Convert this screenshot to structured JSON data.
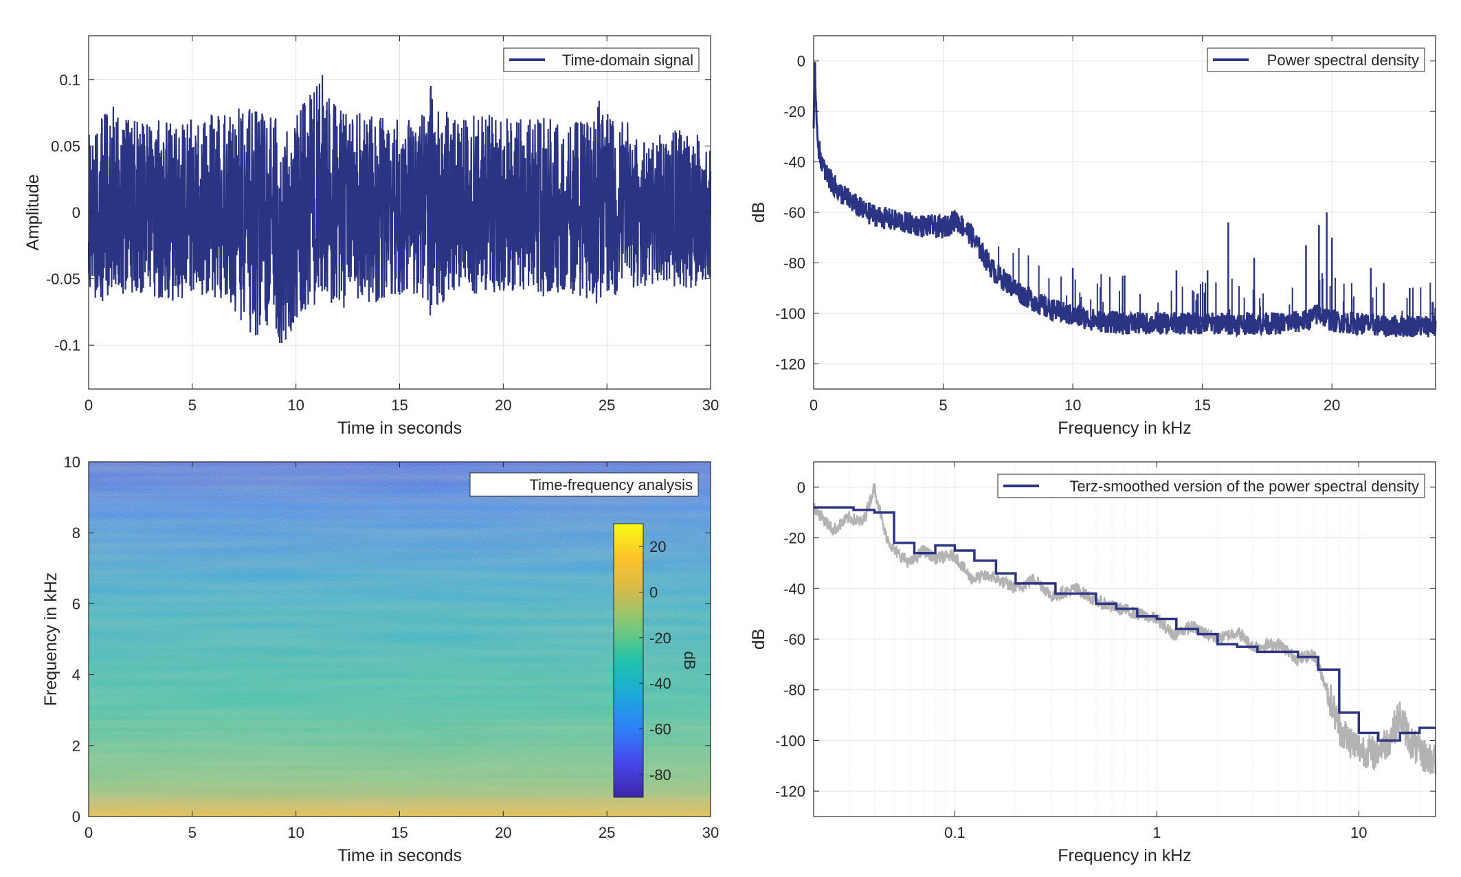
{
  "chart_data": [
    {
      "type": "line",
      "xlabel": "Time in seconds",
      "ylabel": "Amplitude",
      "xlim": [
        0,
        30
      ],
      "ylim": [
        -0.133,
        0.133
      ],
      "xticks": [
        0,
        5,
        10,
        15,
        20,
        25,
        30
      ],
      "xtick_labels": [
        "0",
        "5",
        "10",
        "15",
        "20",
        "25",
        "30"
      ],
      "yticks": [
        -0.1,
        -0.05,
        0,
        0.05,
        0.1
      ],
      "ytick_labels": [
        "-0.1",
        "-0.05",
        "0",
        "0.05",
        "0.1"
      ],
      "grid": true,
      "legend_position": "top-right",
      "series": [
        {
          "name": "Time-domain signal",
          "color": "#2b3483",
          "x": [
            0,
            1,
            2,
            3,
            4,
            5,
            6,
            7,
            8,
            9,
            9.4,
            10,
            11,
            11.2,
            12,
            13,
            14,
            15,
            16,
            16.5,
            17,
            18,
            19,
            20,
            21,
            22,
            23,
            24,
            24.5,
            25,
            26,
            27,
            28,
            29,
            30
          ],
          "upper": [
            0.065,
            0.082,
            0.07,
            0.068,
            0.072,
            0.07,
            0.075,
            0.078,
            0.08,
            0.072,
            0.07,
            0.075,
            0.095,
            0.108,
            0.08,
            0.075,
            0.073,
            0.07,
            0.07,
            0.1,
            0.078,
            0.07,
            0.075,
            0.072,
            0.07,
            0.072,
            0.068,
            0.07,
            0.088,
            0.075,
            0.068,
            0.05,
            0.065,
            0.06,
            0.058
          ],
          "lower": [
            -0.065,
            -0.07,
            -0.06,
            -0.065,
            -0.07,
            -0.06,
            -0.065,
            -0.075,
            -0.095,
            -0.085,
            -0.11,
            -0.08,
            -0.07,
            -0.06,
            -0.075,
            -0.065,
            -0.07,
            -0.065,
            -0.06,
            -0.09,
            -0.07,
            -0.06,
            -0.065,
            -0.06,
            -0.06,
            -0.065,
            -0.06,
            -0.065,
            -0.07,
            -0.068,
            -0.06,
            -0.055,
            -0.055,
            -0.058,
            -0.05
          ]
        }
      ]
    },
    {
      "type": "line",
      "xlabel": "Frequency in kHz",
      "ylabel": "dB",
      "xlim": [
        0,
        24
      ],
      "ylim": [
        -130,
        10
      ],
      "xticks": [
        0,
        5,
        10,
        15,
        20
      ],
      "xtick_labels": [
        "0",
        "5",
        "10",
        "15",
        "20"
      ],
      "yticks": [
        0,
        -20,
        -40,
        -60,
        -80,
        -100,
        -120
      ],
      "ytick_labels": [
        "0",
        "-20",
        "-40",
        "-60",
        "-80",
        "-100",
        "-120"
      ],
      "grid": true,
      "legend_position": "top-right",
      "series": [
        {
          "name": "Power spectral density",
          "color": "#2b3483",
          "x": [
            0,
            0.05,
            0.1,
            0.2,
            0.4,
            0.7,
            1,
            1.5,
            2,
            3,
            4,
            5,
            5.5,
            6,
            6.5,
            7,
            8,
            9,
            10,
            11,
            12,
            14,
            16,
            18,
            19,
            19.5,
            20,
            21,
            22,
            23,
            24
          ],
          "y": [
            -30,
            0,
            -20,
            -35,
            -43,
            -48,
            -52,
            -56,
            -60,
            -63,
            -65,
            -66,
            -63,
            -68,
            -76,
            -84,
            -92,
            -98,
            -101,
            -103,
            -104,
            -104,
            -104,
            -104,
            -103,
            -100,
            -103,
            -104,
            -105,
            -105,
            -105
          ],
          "peaks": [
            [
              10,
              -82
            ],
            [
              12,
              -85
            ],
            [
              14,
              -83
            ],
            [
              15.2,
              -83
            ],
            [
              16,
              -64
            ],
            [
              17,
              -78
            ],
            [
              19,
              -73
            ],
            [
              19.5,
              -65
            ],
            [
              19.8,
              -60
            ],
            [
              20,
              -70
            ],
            [
              21.5,
              -82
            ],
            [
              22,
              -88
            ],
            [
              23,
              -90
            ]
          ]
        }
      ]
    },
    {
      "type": "heatmap",
      "xlabel": "Time in seconds",
      "ylabel": "Frequency in kHz",
      "xlim": [
        0,
        30
      ],
      "ylim": [
        0,
        10
      ],
      "xticks": [
        0,
        5,
        10,
        15,
        20,
        25,
        30
      ],
      "xtick_labels": [
        "0",
        "5",
        "10",
        "15",
        "20",
        "25",
        "30"
      ],
      "yticks": [
        0,
        2,
        4,
        6,
        8,
        10
      ],
      "ytick_labels": [
        "0",
        "2",
        "4",
        "6",
        "8",
        "10"
      ],
      "legend_position": "top-right",
      "legend_text": "Time-frequency analysis",
      "colorbar": {
        "label": "dB",
        "range": [
          -90,
          30
        ],
        "ticks": [
          20,
          0,
          -20,
          -40,
          -60,
          -80
        ],
        "tick_labels": [
          "20",
          "0",
          "-20",
          "-40",
          "-60",
          "-80"
        ],
        "colors": [
          "#3e26a8",
          "#4746eb",
          "#2f80fa",
          "#1ba9da",
          "#21c3aa",
          "#7bc97b",
          "#d2bb4e",
          "#fdc328",
          "#f9fb15"
        ]
      },
      "frequency_profile_db": [
        [
          0,
          15
        ],
        [
          0.2,
          5
        ],
        [
          0.6,
          -8
        ],
        [
          1,
          -15
        ],
        [
          2,
          -22
        ],
        [
          3,
          -28
        ],
        [
          4,
          -33
        ],
        [
          5,
          -38
        ],
        [
          6,
          -42
        ],
        [
          7,
          -50
        ],
        [
          8,
          -55
        ],
        [
          9,
          -62
        ],
        [
          10,
          -68
        ]
      ]
    },
    {
      "type": "line",
      "xlabel": "Frequency in kHz",
      "ylabel": "dB",
      "xscale": "log",
      "xlim": [
        0.02,
        24
      ],
      "ylim": [
        -130,
        10
      ],
      "xticks": [
        0.1,
        1,
        10
      ],
      "xtick_labels": [
        "0.1",
        "1",
        "10"
      ],
      "yticks": [
        0,
        -20,
        -40,
        -60,
        -80,
        -100,
        -120
      ],
      "ytick_labels": [
        "0",
        "-20",
        "-40",
        "-60",
        "-80",
        "-100",
        "-120"
      ],
      "grid": true,
      "legend_position": "top-right",
      "series": [
        {
          "name": "Terz-smoothed version of the power spectral density",
          "color": "#2b3483",
          "x": [
            0.02,
            0.025,
            0.0315,
            0.04,
            0.05,
            0.063,
            0.08,
            0.1,
            0.125,
            0.16,
            0.2,
            0.25,
            0.315,
            0.4,
            0.5,
            0.63,
            0.8,
            1,
            1.25,
            1.6,
            2,
            2.5,
            3.15,
            4,
            5,
            6.3,
            8,
            10,
            12.5,
            16,
            20
          ],
          "y": [
            -8,
            -8,
            -9,
            -10,
            -22,
            -26,
            -23,
            -25,
            -29,
            -34,
            -38,
            -38,
            -42,
            -42,
            -46,
            -48,
            -51,
            -52,
            -56,
            -58,
            -62,
            -63,
            -65,
            -65,
            -67,
            -72,
            -89,
            -97,
            -100,
            -97,
            -95
          ]
        },
        {
          "color": "#b3b3b3",
          "x": [
            0.02,
            0.025,
            0.03,
            0.035,
            0.04,
            0.045,
            0.05,
            0.06,
            0.07,
            0.08,
            0.1,
            0.12,
            0.15,
            0.2,
            0.25,
            0.3,
            0.4,
            0.5,
            0.6,
            0.8,
            1,
            1.2,
            1.5,
            2,
            2.5,
            3,
            4,
            5,
            6,
            7,
            8,
            9,
            10,
            12,
            14,
            16,
            18,
            20,
            24
          ],
          "y": [
            -8,
            -17,
            -12,
            -14,
            0,
            -18,
            -25,
            -30,
            -25,
            -28,
            -27,
            -36,
            -35,
            -40,
            -36,
            -43,
            -40,
            -45,
            -47,
            -50,
            -52,
            -58,
            -55,
            -60,
            -57,
            -63,
            -62,
            -68,
            -66,
            -80,
            -95,
            -100,
            -103,
            -105,
            -100,
            -90,
            -100,
            -105,
            -108
          ]
        }
      ]
    }
  ]
}
